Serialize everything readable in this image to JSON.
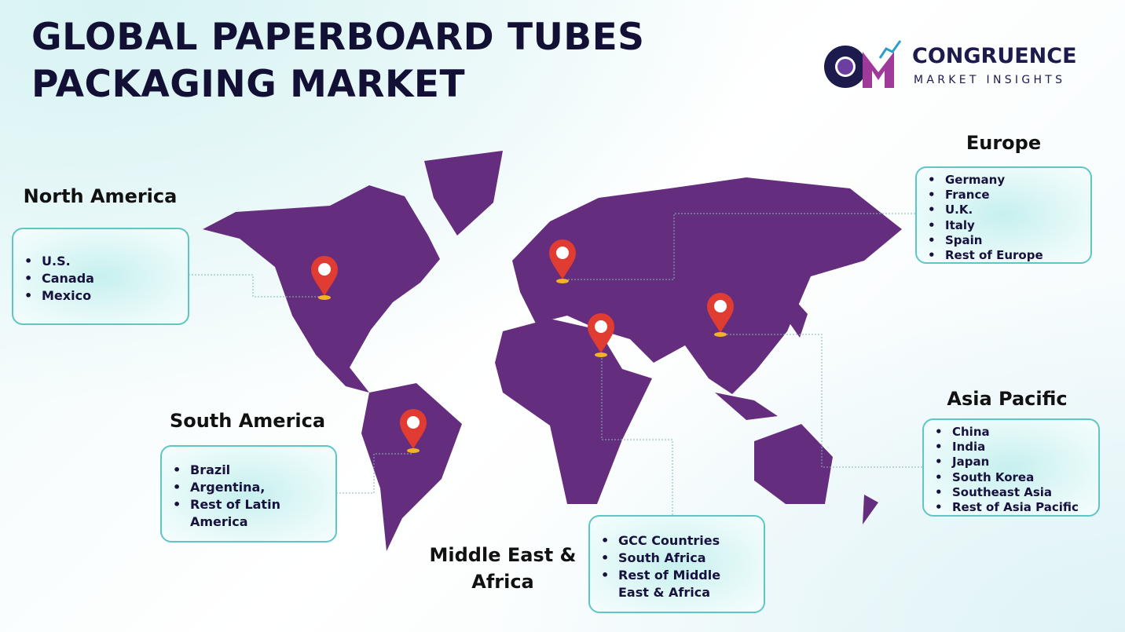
{
  "header": {
    "title_lines": [
      "GLOBAL PAPERBOARD TUBES",
      "PACKAGING MARKET"
    ]
  },
  "logo": {
    "name": "CONGRUENCE",
    "tagline": "MARKET INSIGHTS"
  },
  "regions": [
    {
      "name": "North America",
      "items": [
        "U.S.",
        "Canada",
        "Mexico"
      ]
    },
    {
      "name": "South America",
      "items": [
        "Brazil",
        "Argentina,",
        "Rest of Latin America"
      ]
    },
    {
      "name": "Middle East & Africa",
      "items": [
        "GCC Countries",
        "South Africa",
        "Rest of Middle East & Africa"
      ]
    },
    {
      "name": "Europe",
      "items": [
        "Germany",
        "France",
        "U.K.",
        "Italy",
        "Spain",
        "Rest of Europe"
      ]
    },
    {
      "name": "Asia Pacific",
      "items": [
        "China",
        "India",
        "Japan",
        "South Korea",
        "Southeast Asia",
        "Rest of Asia Pacific"
      ]
    }
  ]
}
